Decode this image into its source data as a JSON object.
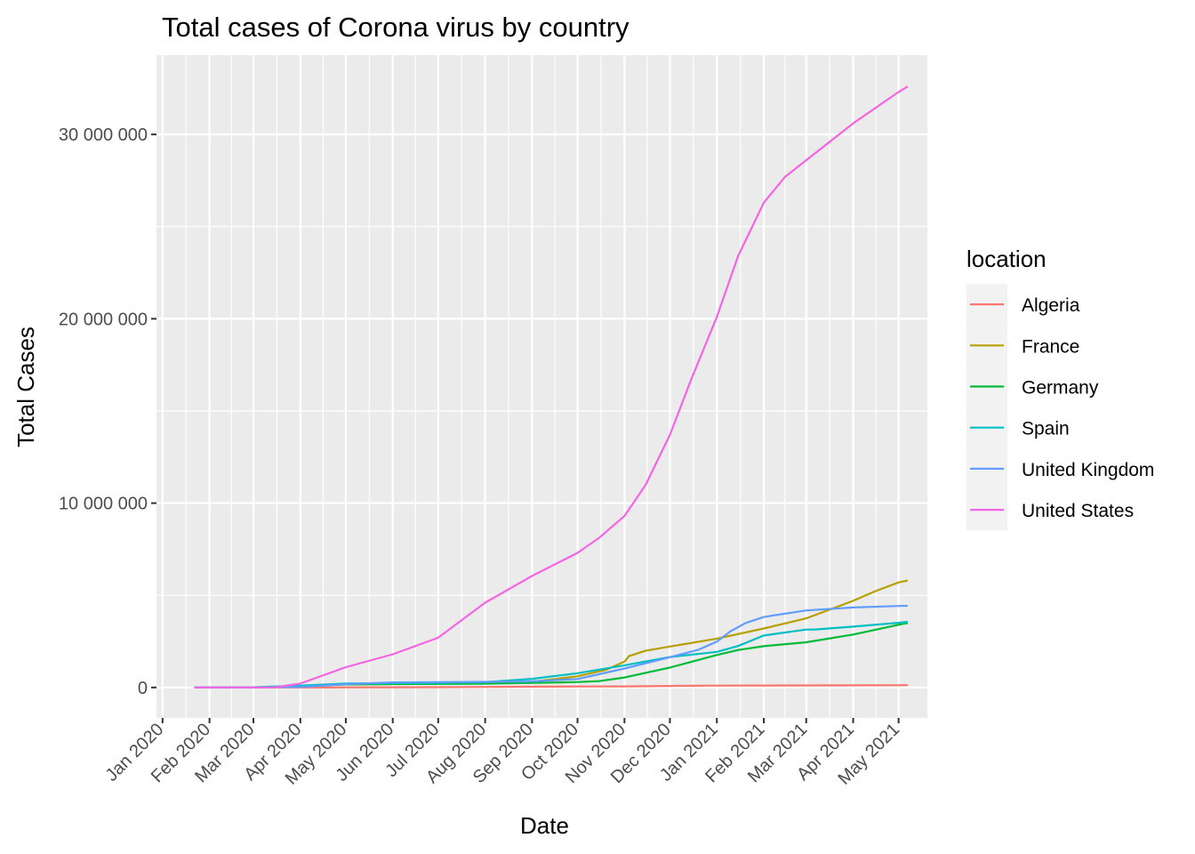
{
  "chart_data": {
    "type": "line",
    "title": "Total cases of Corona virus by country",
    "xlabel": "Date",
    "ylabel": "Total Cases",
    "legend_title": "location",
    "legend_position": "right",
    "grid": true,
    "xlim": [
      "2019-12-28",
      "2021-05-20"
    ],
    "ylim": [
      -1650000,
      34300000
    ],
    "y_ticks": [
      {
        "value": 0,
        "label": "0"
      },
      {
        "value": 10000000,
        "label": "10 000 000"
      },
      {
        "value": 20000000,
        "label": "20 000 000"
      },
      {
        "value": 30000000,
        "label": "30 000 000"
      }
    ],
    "x_ticks": [
      {
        "date": "2020-01-01",
        "label": "Jan 2020"
      },
      {
        "date": "2020-02-01",
        "label": "Feb 2020"
      },
      {
        "date": "2020-03-01",
        "label": "Mar 2020"
      },
      {
        "date": "2020-04-01",
        "label": "Apr 2020"
      },
      {
        "date": "2020-05-01",
        "label": "May 2020"
      },
      {
        "date": "2020-06-01",
        "label": "Jun 2020"
      },
      {
        "date": "2020-07-01",
        "label": "Jul 2020"
      },
      {
        "date": "2020-08-01",
        "label": "Aug 2020"
      },
      {
        "date": "2020-09-01",
        "label": "Sep 2020"
      },
      {
        "date": "2020-10-01",
        "label": "Oct 2020"
      },
      {
        "date": "2020-11-01",
        "label": "Nov 2020"
      },
      {
        "date": "2020-12-01",
        "label": "Dec 2020"
      },
      {
        "date": "2021-01-01",
        "label": "Jan 2021"
      },
      {
        "date": "2021-02-01",
        "label": "Feb 2021"
      },
      {
        "date": "2021-03-01",
        "label": "Mar 2021"
      },
      {
        "date": "2021-04-01",
        "label": "Apr 2021"
      },
      {
        "date": "2021-05-01",
        "label": "May 2021"
      }
    ],
    "series": [
      {
        "name": "Algeria",
        "color": "#F8766D",
        "points": [
          [
            "2020-01-22",
            0
          ],
          [
            "2020-02-25",
            1
          ],
          [
            "2020-04-01",
            700
          ],
          [
            "2020-05-01",
            4000
          ],
          [
            "2020-06-01",
            9500
          ],
          [
            "2020-07-01",
            14300
          ],
          [
            "2020-08-01",
            31000
          ],
          [
            "2020-09-01",
            44500
          ],
          [
            "2020-10-01",
            51500
          ],
          [
            "2020-11-01",
            58600
          ],
          [
            "2020-12-01",
            84200
          ],
          [
            "2021-01-01",
            99900
          ],
          [
            "2021-02-01",
            107300
          ],
          [
            "2021-03-01",
            113400
          ],
          [
            "2021-04-01",
            117200
          ],
          [
            "2021-05-01",
            122700
          ],
          [
            "2021-05-07",
            124000
          ]
        ]
      },
      {
        "name": "France",
        "color": "#B79F00",
        "points": [
          [
            "2020-01-22",
            0
          ],
          [
            "2020-03-01",
            130
          ],
          [
            "2020-04-01",
            57000
          ],
          [
            "2020-05-01",
            168000
          ],
          [
            "2020-06-01",
            189000
          ],
          [
            "2020-07-01",
            202000
          ],
          [
            "2020-08-01",
            226000
          ],
          [
            "2020-09-01",
            306000
          ],
          [
            "2020-10-01",
            606000
          ],
          [
            "2020-10-20",
            960000
          ],
          [
            "2020-11-01",
            1400000
          ],
          [
            "2020-11-04",
            1700000
          ],
          [
            "2020-11-15",
            2000000
          ],
          [
            "2020-12-01",
            2220000
          ],
          [
            "2021-01-01",
            2650000
          ],
          [
            "2021-02-01",
            3200000
          ],
          [
            "2021-03-01",
            3750000
          ],
          [
            "2021-04-01",
            4700000
          ],
          [
            "2021-04-15",
            5200000
          ],
          [
            "2021-05-01",
            5700000
          ],
          [
            "2021-05-07",
            5800000
          ]
        ]
      },
      {
        "name": "Germany",
        "color": "#00BA38",
        "points": [
          [
            "2020-01-22",
            0
          ],
          [
            "2020-02-27",
            40
          ],
          [
            "2020-04-01",
            77000
          ],
          [
            "2020-05-01",
            163000
          ],
          [
            "2020-06-01",
            183000
          ],
          [
            "2020-07-01",
            195000
          ],
          [
            "2020-08-01",
            210000
          ],
          [
            "2020-09-01",
            245000
          ],
          [
            "2020-10-01",
            295000
          ],
          [
            "2020-10-15",
            345000
          ],
          [
            "2020-11-01",
            540000
          ],
          [
            "2020-12-01",
            1080000
          ],
          [
            "2021-01-01",
            1760000
          ],
          [
            "2021-01-15",
            2030000
          ],
          [
            "2021-02-01",
            2240000
          ],
          [
            "2021-03-01",
            2450000
          ],
          [
            "2021-04-01",
            2870000
          ],
          [
            "2021-05-01",
            3400000
          ],
          [
            "2021-05-07",
            3500000
          ]
        ]
      },
      {
        "name": "Spain",
        "color": "#00BFC4",
        "points": [
          [
            "2020-01-22",
            0
          ],
          [
            "2020-02-25",
            6
          ],
          [
            "2020-04-01",
            104000
          ],
          [
            "2020-05-01",
            213000
          ],
          [
            "2020-06-01",
            240000
          ],
          [
            "2020-07-01",
            250000
          ],
          [
            "2020-08-01",
            289000
          ],
          [
            "2020-09-01",
            470000
          ],
          [
            "2020-10-01",
            770000
          ],
          [
            "2020-11-01",
            1200000
          ],
          [
            "2020-12-01",
            1650000
          ],
          [
            "2021-01-01",
            1930000
          ],
          [
            "2021-01-15",
            2250000
          ],
          [
            "2021-02-01",
            2820000
          ],
          [
            "2021-03-01",
            3140000
          ],
          [
            "2021-03-06",
            3140000
          ],
          [
            "2021-03-08",
            3150000
          ],
          [
            "2021-04-01",
            3300000
          ],
          [
            "2021-05-01",
            3510000
          ],
          [
            "2021-05-07",
            3560000
          ]
        ]
      },
      {
        "name": "United Kingdom",
        "color": "#619CFF",
        "points": [
          [
            "2020-01-22",
            0
          ],
          [
            "2020-02-15",
            9
          ],
          [
            "2020-04-01",
            29000
          ],
          [
            "2020-05-01",
            180000
          ],
          [
            "2020-06-01",
            275000
          ],
          [
            "2020-07-01",
            285000
          ],
          [
            "2020-08-01",
            304000
          ],
          [
            "2020-09-01",
            335000
          ],
          [
            "2020-10-01",
            460000
          ],
          [
            "2020-11-01",
            1030000
          ],
          [
            "2020-12-01",
            1640000
          ],
          [
            "2020-12-20",
            2050000
          ],
          [
            "2021-01-01",
            2490000
          ],
          [
            "2021-01-10",
            3050000
          ],
          [
            "2021-01-20",
            3500000
          ],
          [
            "2021-02-01",
            3820000
          ],
          [
            "2021-03-01",
            4180000
          ],
          [
            "2021-04-01",
            4340000
          ],
          [
            "2021-05-01",
            4420000
          ],
          [
            "2021-05-07",
            4430000
          ]
        ]
      },
      {
        "name": "United States",
        "color": "#F564E3",
        "points": [
          [
            "2020-01-22",
            1
          ],
          [
            "2020-03-01",
            75
          ],
          [
            "2020-03-15",
            3500
          ],
          [
            "2020-04-01",
            215000
          ],
          [
            "2020-05-01",
            1100000
          ],
          [
            "2020-06-01",
            1800000
          ],
          [
            "2020-07-01",
            2700000
          ],
          [
            "2020-08-01",
            4600000
          ],
          [
            "2020-09-01",
            6050000
          ],
          [
            "2020-10-01",
            7300000
          ],
          [
            "2020-10-15",
            8100000
          ],
          [
            "2020-11-01",
            9300000
          ],
          [
            "2020-11-15",
            11000000
          ],
          [
            "2020-12-01",
            13700000
          ],
          [
            "2020-12-15",
            16700000
          ],
          [
            "2021-01-01",
            20100000
          ],
          [
            "2021-01-15",
            23400000
          ],
          [
            "2021-02-01",
            26300000
          ],
          [
            "2021-02-15",
            27700000
          ],
          [
            "2021-03-01",
            28600000
          ],
          [
            "2021-04-01",
            30600000
          ],
          [
            "2021-05-01",
            32300000
          ],
          [
            "2021-05-07",
            32600000
          ]
        ]
      }
    ]
  }
}
